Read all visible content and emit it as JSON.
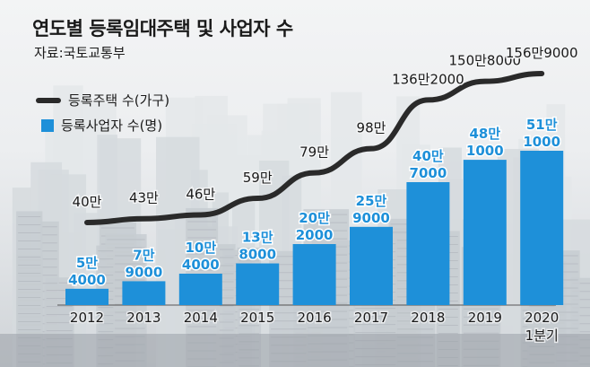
{
  "title": "연도별 등록임대주택 및 사업자 수",
  "source": "자료:국토교통부",
  "legend": {
    "line_label": "등록주택 수(가구)",
    "bar_label": "등록사업자 수(명)"
  },
  "colors": {
    "bar": "#1e90d9",
    "bar_label": "#1e90d9",
    "line": "#2a2a2a",
    "text": "#1a1a1a"
  },
  "chart_data": {
    "type": "bar",
    "categories": [
      "2012",
      "2013",
      "2014",
      "2015",
      "2016",
      "2017",
      "2018",
      "2019",
      "2020"
    ],
    "category_sublabels": [
      "",
      "",
      "",
      "",
      "",
      "",
      "",
      "",
      "1분기"
    ],
    "series": [
      {
        "name": "등록사업자 수(명)",
        "type": "bar",
        "values": [
          54000,
          79000,
          104000,
          138000,
          202000,
          259000,
          407000,
          481000,
          511000
        ],
        "labels": [
          [
            "5만",
            "4000"
          ],
          [
            "7만",
            "9000"
          ],
          [
            "10만",
            "4000"
          ],
          [
            "13만",
            "8000"
          ],
          [
            "20만",
            "2000"
          ],
          [
            "25만",
            "9000"
          ],
          [
            "40만",
            "7000"
          ],
          [
            "48만",
            "1000"
          ],
          [
            "51만",
            "1000"
          ]
        ]
      },
      {
        "name": "등록주택 수(가구)",
        "type": "line",
        "values": [
          400000,
          430000,
          460000,
          590000,
          790000,
          980000,
          1362000,
          1508000,
          1569000
        ],
        "labels": [
          "40만",
          "43만",
          "46만",
          "59만",
          "79만",
          "98만",
          "136만2000",
          "150만8000",
          "156만9000"
        ]
      }
    ]
  }
}
